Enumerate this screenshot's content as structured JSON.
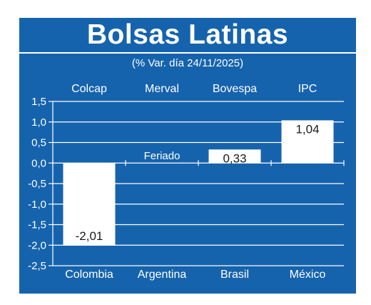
{
  "title": "Bolsas Latinas",
  "subtitle": "(% Var. día 24/11/2025)",
  "colors": {
    "background": "#1663ad",
    "bar": "#ffffff",
    "text": "#ffffff",
    "value_text": "#1a1a1a",
    "grid": "#ffffff"
  },
  "chart_data": {
    "type": "bar",
    "title": "Bolsas Latinas",
    "subtitle": "(% Var. día 24/11/2025)",
    "index_labels": [
      "Colcap",
      "Merval",
      "Bovespa",
      "IPC"
    ],
    "categories": [
      "Colombia",
      "Argentina",
      "Brasil",
      "México"
    ],
    "values": [
      -2.01,
      null,
      0.33,
      1.04
    ],
    "value_labels": [
      "-2,01",
      "Feriado",
      "0,33",
      "1,04"
    ],
    "ylim": [
      -2.5,
      1.5
    ],
    "yticks": [
      1.5,
      1.0,
      0.5,
      0.0,
      -0.5,
      -1.0,
      -1.5,
      -2.0,
      -2.5
    ],
    "ytick_labels": [
      "1,5",
      "1,0",
      "0,5",
      "0,0",
      "-0,5",
      "-1,0",
      "-1,5",
      "-2,0",
      "-2,5"
    ],
    "grid": true,
    "xlabel": "",
    "ylabel": ""
  }
}
